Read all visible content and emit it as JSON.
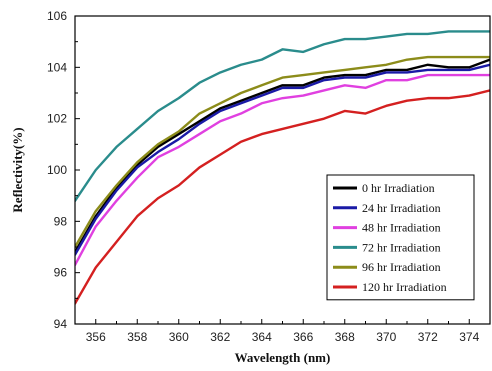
{
  "chart_data": {
    "type": "line",
    "xlabel": "Wavelength (nm)",
    "ylabel": "Reflectivity(%)",
    "xlim": [
      355,
      375
    ],
    "ylim": [
      94,
      106
    ],
    "x_ticks": [
      356,
      358,
      360,
      362,
      364,
      366,
      368,
      370,
      372,
      374
    ],
    "y_ticks": [
      94,
      96,
      98,
      100,
      102,
      104,
      106
    ],
    "grid": false,
    "legend_position": "lower-right",
    "x": [
      355,
      356,
      357,
      358,
      359,
      360,
      361,
      362,
      363,
      364,
      365,
      366,
      367,
      368,
      369,
      370,
      371,
      372,
      373,
      374,
      375
    ],
    "series": [
      {
        "name": "0 hr Irradiation",
        "color": "#000000",
        "values": [
          96.8,
          98.2,
          99.3,
          100.2,
          100.9,
          101.4,
          101.9,
          102.4,
          102.7,
          103.0,
          103.3,
          103.3,
          103.6,
          103.7,
          103.7,
          103.9,
          103.9,
          104.1,
          104.0,
          104.0,
          104.3
        ]
      },
      {
        "name": "24 hr Irradiation",
        "color": "#1a1aa6",
        "values": [
          96.7,
          98.1,
          99.2,
          100.1,
          100.7,
          101.2,
          101.8,
          102.3,
          102.6,
          102.9,
          103.2,
          103.2,
          103.5,
          103.6,
          103.6,
          103.8,
          103.8,
          103.9,
          103.9,
          103.9,
          104.1
        ]
      },
      {
        "name": "48 hr Irradiation",
        "color": "#e040e0",
        "values": [
          96.3,
          97.8,
          98.8,
          99.7,
          100.5,
          100.9,
          101.4,
          101.9,
          102.2,
          102.6,
          102.8,
          102.9,
          103.1,
          103.3,
          103.2,
          103.5,
          103.5,
          103.7,
          103.7,
          103.7,
          103.7
        ]
      },
      {
        "name": "72 hr Irradiation",
        "color": "#2a8c8c",
        "values": [
          98.8,
          100.0,
          100.9,
          101.6,
          102.3,
          102.8,
          103.4,
          103.8,
          104.1,
          104.3,
          104.7,
          104.6,
          104.9,
          105.1,
          105.1,
          105.2,
          105.3,
          105.3,
          105.4,
          105.4,
          105.4
        ]
      },
      {
        "name": "96 hr Irradiation",
        "color": "#8c8c1a",
        "values": [
          97.0,
          98.4,
          99.4,
          100.3,
          101.0,
          101.5,
          102.2,
          102.6,
          103.0,
          103.3,
          103.6,
          103.7,
          103.8,
          103.9,
          104.0,
          104.1,
          104.3,
          104.4,
          104.4,
          104.4,
          104.4
        ]
      },
      {
        "name": "120 hr Irradiation",
        "color": "#d42020",
        "values": [
          94.8,
          96.2,
          97.2,
          98.2,
          98.9,
          99.4,
          100.1,
          100.6,
          101.1,
          101.4,
          101.6,
          101.8,
          102.0,
          102.3,
          102.2,
          102.5,
          102.7,
          102.8,
          102.8,
          102.9,
          103.1
        ]
      }
    ]
  }
}
